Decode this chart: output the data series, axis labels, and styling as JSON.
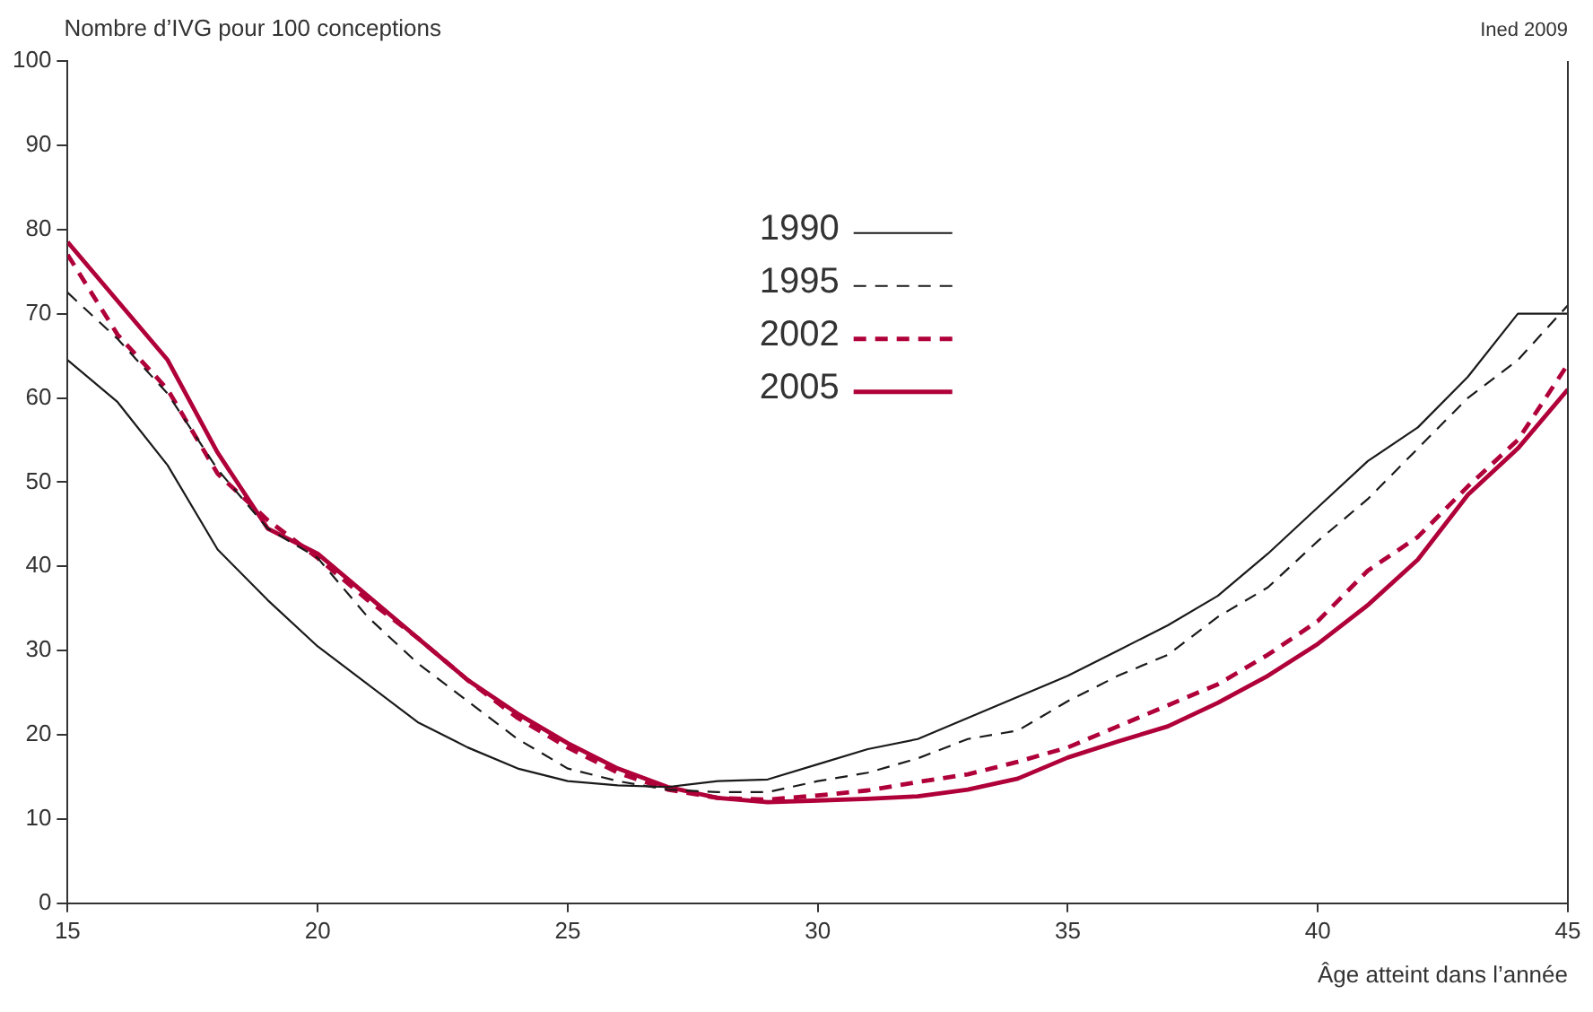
{
  "chart_data": {
    "type": "line",
    "ylabel": "Nombre d’IVG pour 100 conceptions",
    "xlabel": "Âge atteint dans l’année",
    "annotations": [
      "Ined 2009"
    ],
    "x": [
      15,
      16,
      17,
      18,
      19,
      20,
      21,
      22,
      23,
      24,
      25,
      26,
      27,
      28,
      29,
      30,
      31,
      32,
      33,
      34,
      35,
      36,
      37,
      38,
      39,
      40,
      41,
      42,
      43,
      44,
      45
    ],
    "xlim": [
      15,
      45
    ],
    "xticks": [
      15,
      20,
      25,
      30,
      35,
      40,
      45
    ],
    "ylim": [
      0,
      100
    ],
    "yticks": [
      0,
      10,
      20,
      30,
      40,
      50,
      60,
      70,
      80,
      90,
      100
    ],
    "grid": false,
    "legend": "top",
    "marker": "none",
    "series": [
      {
        "name": "1990",
        "color": "#1a1a1a",
        "line_style": "solid",
        "values": [
          64.5,
          59.5,
          52,
          42,
          36,
          30.5,
          26,
          21.5,
          18.5,
          16,
          14.5,
          14,
          13.8,
          14.5,
          14.7,
          16.5,
          18.3,
          19.5,
          22,
          24.5,
          27,
          30,
          33,
          36.5,
          41.5,
          47,
          52.5,
          56.5,
          62.5,
          70,
          70
        ]
      },
      {
        "name": "1995",
        "color": "#1a1a1a",
        "line_style": "dashed",
        "values": [
          72.5,
          67,
          60.5,
          51.5,
          44.5,
          41,
          34,
          28.5,
          24,
          19.5,
          16,
          14.5,
          13.5,
          13.2,
          13.2,
          14.5,
          15.5,
          17.2,
          19.5,
          20.5,
          24,
          27,
          29.5,
          34,
          37.5,
          43,
          48,
          54,
          60,
          64.5,
          71
        ]
      },
      {
        "name": "2002",
        "color": "#b0003a",
        "line_style": "dashed",
        "values": [
          77,
          67.5,
          61,
          51,
          45.5,
          41,
          36,
          31.5,
          26.5,
          22,
          18.5,
          15.5,
          13.5,
          12.5,
          12.3,
          12.8,
          13.4,
          14.4,
          15.3,
          16.8,
          18.5,
          21,
          23.5,
          26,
          29.5,
          33.5,
          39.5,
          43.5,
          49.5,
          55,
          64
        ]
      },
      {
        "name": "2005",
        "color": "#b0003a",
        "line_style": "solid",
        "values": [
          78.5,
          71.5,
          64.5,
          53.5,
          44.5,
          41.5,
          36.5,
          31.5,
          26.5,
          22.5,
          19,
          16,
          13.8,
          12.5,
          12,
          12.2,
          12.4,
          12.7,
          13.5,
          14.8,
          17.3,
          19.2,
          21,
          23.8,
          27,
          30.8,
          35.4,
          40.8,
          48.5,
          54,
          61
        ]
      }
    ]
  }
}
